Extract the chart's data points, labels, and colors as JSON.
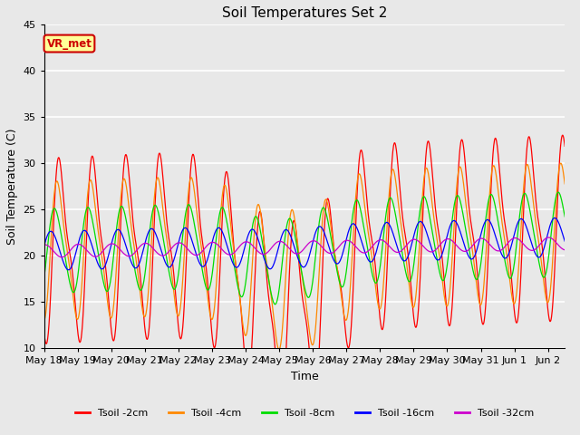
{
  "title": "Soil Temperatures Set 2",
  "xlabel": "Time",
  "ylabel": "Soil Temperature (C)",
  "ylim": [
    10,
    45
  ],
  "n_days": 15.5,
  "background_color": "#e8e8e8",
  "annotation_text": "VR_met",
  "annotation_bg": "#ffff99",
  "annotation_border": "#cc0000",
  "x_tick_labels": [
    "May 18",
    "May 19",
    "May 20",
    "May 21",
    "May 22",
    "May 23",
    "May 24",
    "May 25",
    "May 26",
    "May 27",
    "May 28",
    "May 29",
    "May 30",
    "May 31",
    "Jun 1",
    "Jun 2"
  ],
  "yticks": [
    10,
    15,
    20,
    25,
    30,
    35,
    40,
    45
  ],
  "series": [
    {
      "label": "Tsoil -2cm",
      "color": "#ff0000"
    },
    {
      "label": "Tsoil -4cm",
      "color": "#ff8800"
    },
    {
      "label": "Tsoil -8cm",
      "color": "#00dd00"
    },
    {
      "label": "Tsoil -16cm",
      "color": "#0000ff"
    },
    {
      "label": "Tsoil -32cm",
      "color": "#cc00cc"
    }
  ]
}
